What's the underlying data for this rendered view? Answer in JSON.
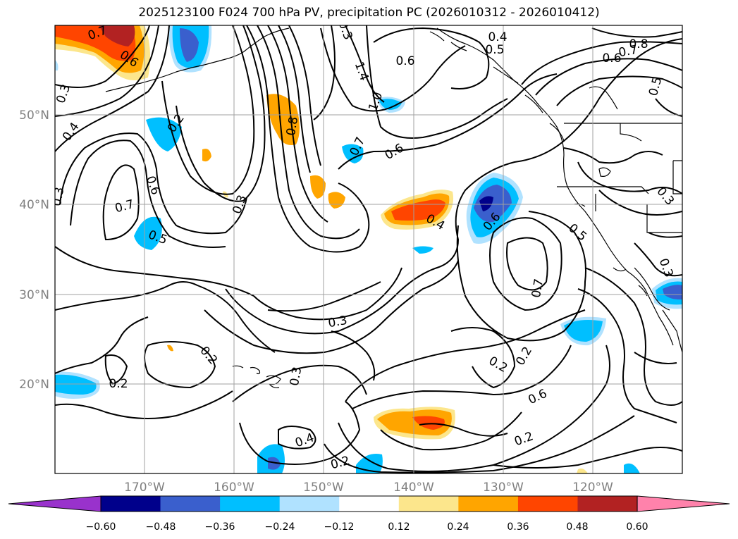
{
  "title": "2025123100 F024 700 hPa PV, precipitation PC (2026010312 - 2026010412)",
  "map": {
    "lat_labels": [
      "50°N",
      "40°N",
      "30°N",
      "20°N"
    ],
    "lon_labels": [
      "170°W",
      "160°W",
      "150°W",
      "140°W",
      "130°W",
      "120°W"
    ],
    "contour_labels": [
      "0.7",
      "0.6",
      "0.3",
      "0.4",
      "0.2",
      "0.6",
      "0.7",
      "0.5",
      "0.3",
      "0.2",
      "1.4",
      "1.0",
      "0.6",
      "0.4",
      "0.5",
      "0.8",
      "0.7",
      "0.6",
      "0.5",
      "0.8",
      "0.6",
      "0.7",
      "0.3",
      "0.4",
      "0.6",
      "0.7",
      "0.5",
      "0.3",
      "0.3",
      "0.3",
      "0.2",
      "0.2",
      "0.3",
      "0.6",
      "0.2",
      "0.4",
      "0.2",
      "0.2",
      "0.3"
    ]
  },
  "colorbar": {
    "labels": [
      "−0.60",
      "−0.48",
      "−0.36",
      "−0.24",
      "−0.12",
      "0.12",
      "0.24",
      "0.36",
      "0.48",
      "0.60"
    ],
    "colors": [
      "#9932cc",
      "#00008b",
      "#3a5fcd",
      "#00bfff",
      "#b0e2ff",
      "#ffffff",
      "#fce68c",
      "#ffa500",
      "#ff4500",
      "#b22222",
      "#ff82ab"
    ]
  }
}
